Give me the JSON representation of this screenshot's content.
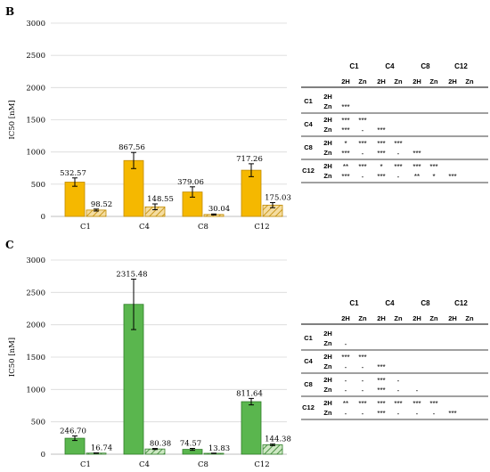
{
  "charts": [
    {
      "panel": "B",
      "chart_data": {
        "type": "bar",
        "ylabel": "IC50 [nM]",
        "ylim": [
          0,
          3000
        ],
        "yticks": [
          0,
          500,
          1000,
          1500,
          2000,
          2500,
          3000
        ],
        "categories": [
          "C1",
          "C4",
          "C8",
          "C12"
        ],
        "series": [
          {
            "values": [
              532.57,
              867.56,
              379.06,
              717.26
            ],
            "labels": [
              "532.57",
              "867.56",
              "379.06",
              "717.26"
            ],
            "errors": [
              65,
              125,
              80,
              100
            ],
            "color": "#F5B800",
            "edge": "#C08A00",
            "pattern": "solid"
          },
          {
            "values": [
              98.52,
              148.55,
              30.04,
              175.03
            ],
            "labels": [
              "98.52",
              "148.55",
              "30.04",
              "175.03"
            ],
            "errors": [
              15,
              45,
              8,
              40
            ],
            "color": "#F5DDA0",
            "edge": "#C08A00",
            "pattern": "hatched"
          }
        ],
        "grid": true
      },
      "table": {
        "groups": [
          "C1",
          "C4",
          "C8",
          "C12"
        ],
        "subs": [
          "2H",
          "Zn"
        ],
        "rows": [
          {
            "label": "C1",
            "lines": [
              [
                "",
                "",
                "",
                "",
                "",
                "",
                "",
                ""
              ],
              [
                "***",
                "",
                "",
                "",
                "",
                "",
                "",
                ""
              ]
            ]
          },
          {
            "label": "C4",
            "lines": [
              [
                "***",
                "***",
                "",
                "",
                "",
                "",
                "",
                ""
              ],
              [
                "***",
                "-",
                "***",
                "",
                "",
                "",
                "",
                ""
              ]
            ]
          },
          {
            "label": "C8",
            "lines": [
              [
                "*",
                "***",
                "***",
                "***",
                "",
                "",
                "",
                ""
              ],
              [
                "***",
                "-",
                "***",
                "-",
                "***",
                "",
                "",
                ""
              ]
            ]
          },
          {
            "label": "C12",
            "lines": [
              [
                "**",
                "***",
                "*",
                "***",
                "***",
                "***",
                "",
                ""
              ],
              [
                "***",
                "-",
                "***",
                "-",
                "**",
                "*",
                "***",
                ""
              ]
            ]
          }
        ]
      }
    },
    {
      "panel": "C",
      "chart_data": {
        "type": "bar",
        "ylabel": "IC50 [nM]",
        "ylim": [
          0,
          3000
        ],
        "yticks": [
          0,
          500,
          1000,
          1500,
          2000,
          2500,
          3000
        ],
        "categories": [
          "C1",
          "C4",
          "C8",
          "C12"
        ],
        "series": [
          {
            "values": [
              246.7,
              2315.48,
              74.57,
              811.64
            ],
            "labels": [
              "246.70",
              "2315.48",
              "74.57",
              "811.64"
            ],
            "errors": [
              35,
              390,
              15,
              50
            ],
            "color": "#5AB64E",
            "edge": "#2E7D27",
            "pattern": "solid"
          },
          {
            "values": [
              16.74,
              80.38,
              13.83,
              144.38
            ],
            "labels": [
              "16.74",
              "80.38",
              "13.83",
              "144.38"
            ],
            "errors": [
              3,
              8,
              3,
              12
            ],
            "color": "#CDE8C3",
            "edge": "#2E7D27",
            "pattern": "hatched"
          }
        ],
        "grid": true
      },
      "table": {
        "groups": [
          "C1",
          "C4",
          "C8",
          "C12"
        ],
        "subs": [
          "2H",
          "Zn"
        ],
        "rows": [
          {
            "label": "C1",
            "lines": [
              [
                "",
                "",
                "",
                "",
                "",
                "",
                "",
                ""
              ],
              [
                "-",
                "",
                "",
                "",
                "",
                "",
                "",
                ""
              ]
            ]
          },
          {
            "label": "C4",
            "lines": [
              [
                "***",
                "***",
                "",
                "",
                "",
                "",
                "",
                ""
              ],
              [
                "-",
                "-",
                "***",
                "",
                "",
                "",
                "",
                ""
              ]
            ]
          },
          {
            "label": "C8",
            "lines": [
              [
                "-",
                "-",
                "***",
                "-",
                "",
                "",
                "",
                ""
              ],
              [
                "-",
                "-",
                "***",
                "-",
                "-",
                "",
                "",
                ""
              ]
            ]
          },
          {
            "label": "C12",
            "lines": [
              [
                "**",
                "***",
                "***",
                "***",
                "***",
                "***",
                "",
                ""
              ],
              [
                "-",
                "-",
                "***",
                "-",
                "-",
                "-",
                "***",
                ""
              ]
            ]
          }
        ]
      }
    }
  ]
}
